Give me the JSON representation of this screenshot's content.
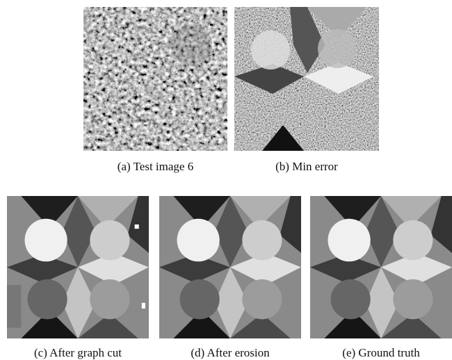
{
  "figure": {
    "captions": [
      "(a) Test image 6",
      "(b) Min error",
      "(c) After graph cut",
      "(d) After erosion",
      "(e) Ground truth"
    ]
  }
}
